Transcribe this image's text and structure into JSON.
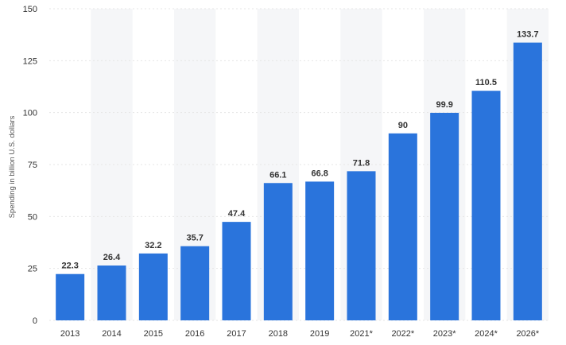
{
  "chart_data": {
    "type": "bar",
    "categories": [
      "2013",
      "2014",
      "2015",
      "2016",
      "2017",
      "2018",
      "2019",
      "2021*",
      "2022*",
      "2023*",
      "2024*",
      "2026*"
    ],
    "values": [
      22.3,
      26.4,
      32.2,
      35.7,
      47.4,
      66.1,
      66.8,
      71.8,
      90,
      99.9,
      110.5,
      133.7
    ],
    "value_labels": [
      "22.3",
      "26.4",
      "32.2",
      "35.7",
      "47.4",
      "66.1",
      "66.8",
      "71.8",
      "90",
      "99.9",
      "110.5",
      "133.7"
    ],
    "title": "",
    "xlabel": "",
    "ylabel": "Spending in billion U.S. dollars",
    "ylim": [
      0,
      150
    ],
    "yticks": [
      0,
      25,
      50,
      75,
      100,
      125,
      150
    ],
    "ytick_labels": [
      "0",
      "25",
      "50",
      "75",
      "100",
      "125",
      "150"
    ],
    "grid": true,
    "alternating_column_shading": true,
    "bar_color": "#2a74dc",
    "shade_color": "#f5f6f8",
    "legend": "none"
  }
}
